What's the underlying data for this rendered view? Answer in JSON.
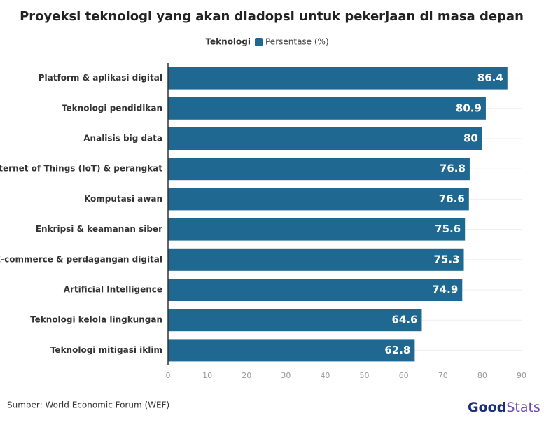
{
  "chart_data": {
    "type": "bar",
    "orientation": "horizontal",
    "title": "Proyeksi teknologi yang akan diadopsi untuk pekerjaan di masa depan",
    "legend_title": "Teknologi",
    "categories": [
      "Platform & aplikasi digital",
      "Teknologi pendidikan",
      "Analisis big data",
      "Internet of Things (IoT) & perangkat",
      "Komputasi awan",
      "Enkripsi & keamanan siber",
      "E-commerce & perdagangan digital",
      "Artificial Intelligence",
      "Teknologi kelola lingkungan",
      "Teknologi mitigasi iklim"
    ],
    "series": [
      {
        "name": "Persentase (%)",
        "color": "#1f6891",
        "values": [
          86.4,
          80.9,
          80,
          76.8,
          76.6,
          75.6,
          75.3,
          74.9,
          64.6,
          62.8
        ]
      }
    ],
    "xlim": [
      0,
      90
    ],
    "xticks": [
      0,
      10,
      20,
      30,
      40,
      50,
      60,
      70,
      80,
      90
    ],
    "source": "Sumber: World Economic Forum (WEF)",
    "logo": {
      "part1": "Good",
      "part2": "Stats"
    }
  }
}
